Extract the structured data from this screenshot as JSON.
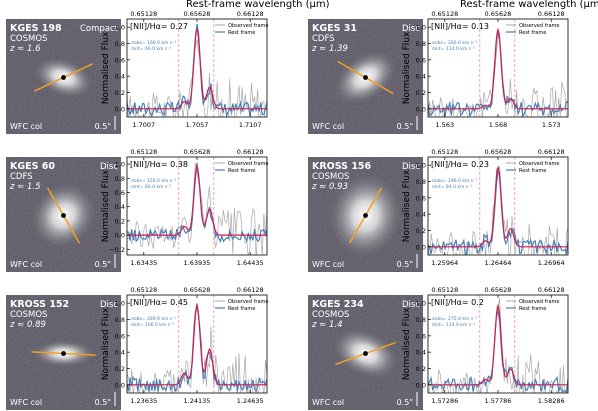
{
  "figure": {
    "top_axis_label": "Rest-frame wavelength (μm)",
    "y_label": "Normalised Flux",
    "legend": {
      "observed": "Observed frame",
      "rest": "Rest frame"
    },
    "image_footer": {
      "band": "WFC col",
      "scale": "0.5\""
    },
    "colors": {
      "observed": "#a8a8a8",
      "rest": "#4a7fb4",
      "fit": "#cc1f55",
      "dashed": "#f08aa6",
      "major_axis": "#f0a020"
    }
  },
  "panels": [
    {
      "name": "KGES 198",
      "field": "COSMOS",
      "redshift": "z ≈ 1.6",
      "morphology": "Compact",
      "ratio_text": "[NII]/Hα= 0.27",
      "sigma_obs": "σobs= 166.0 km s⁻¹",
      "sigma_int": "σint= 66.0 km s⁻¹",
      "top_ticks": [
        "0.65128",
        "0.65628",
        "0.66128"
      ],
      "bottom_ticks": [
        "1.7007",
        "1.7057",
        "1.7107"
      ],
      "y_ticks": [
        "0.0",
        "0.2",
        "0.4",
        "0.6",
        "0.8",
        "1.0"
      ],
      "pa_deg": 25
    },
    {
      "name": "KGES 31",
      "field": "CDFS",
      "redshift": "z ≈ 1.39",
      "morphology": "Disc",
      "ratio_text": "[NII]/Hα= 0.13",
      "sigma_obs": "σobs= 266.0 km s⁻¹",
      "sigma_int": "σint= 114.0 km s⁻¹",
      "top_ticks": [
        "0.65128",
        "0.65628",
        "0.66128"
      ],
      "bottom_ticks": [
        "1.563",
        "1.568",
        "1.573"
      ],
      "y_ticks": [
        "0.0",
        "0.2",
        "0.4",
        "0.6",
        "0.8",
        "1.0"
      ],
      "pa_deg": -30
    },
    {
      "name": "KGES 60",
      "field": "CDFS",
      "redshift": "z ≈ 1.5",
      "morphology": "Disc",
      "ratio_text": "[NII]/Hα= 0.38",
      "sigma_obs": "σobs= 158.0 km s⁻¹",
      "sigma_int": "σint= 60.0 km s⁻¹",
      "top_ticks": [
        "0.65128",
        "0.65628",
        "0.66128"
      ],
      "bottom_ticks": [
        "1.63435",
        "1.63935",
        "1.64435"
      ],
      "y_ticks": [
        "−0.2",
        "0.0",
        "0.2",
        "0.4",
        "0.6",
        "0.8",
        "1.0"
      ],
      "pa_deg": -60
    },
    {
      "name": "KROSS 156",
      "field": "COSMOS",
      "redshift": "z ≈ 0.93",
      "morphology": "Disc",
      "ratio_text": "[NII]/Hα= 0.23",
      "sigma_obs": "σobs= 196.0 km s⁻¹",
      "sigma_int": "σint= 84.0 km s⁻¹",
      "top_ticks": [
        "0.65128",
        "0.65628",
        "0.66128"
      ],
      "bottom_ticks": [
        "1.25964",
        "1.26464",
        "1.26964"
      ],
      "y_ticks": [
        "0.0",
        "0.2",
        "0.4",
        "0.6",
        "0.8",
        "1.0"
      ],
      "pa_deg": 60
    },
    {
      "name": "KROSS 152",
      "field": "COSMOS",
      "redshift": "z ≈ 0.89",
      "morphology": "Disc",
      "ratio_text": "[NII]/Hα= 0.45",
      "sigma_obs": "σobs= 289.0 km s⁻¹",
      "sigma_int": "σint= 106.0 km s⁻¹",
      "top_ticks": [
        "0.65128",
        "0.65628",
        "0.66128"
      ],
      "bottom_ticks": [
        "1.23635",
        "1.24135",
        "1.24635"
      ],
      "y_ticks": [
        "0.0",
        "0.2",
        "0.4",
        "0.6",
        "0.8",
        "1.0"
      ],
      "pa_deg": -3
    },
    {
      "name": "KGES 234",
      "field": "COSMOS",
      "redshift": "z ≈ 1.4",
      "morphology": "Disc",
      "ratio_text": "[NII]/Hα= 0.2",
      "sigma_obs": "σobs= 275.0 km s⁻¹",
      "sigma_int": "σint= 114.0 km s⁻¹",
      "top_ticks": [
        "0.65128",
        "0.65628",
        "0.66128"
      ],
      "bottom_ticks": [
        "1.57286",
        "1.57786",
        "1.58286"
      ],
      "y_ticks": [
        "0.0",
        "0.2",
        "0.4",
        "0.6",
        "0.8",
        "1.0"
      ],
      "pa_deg": 20
    }
  ]
}
